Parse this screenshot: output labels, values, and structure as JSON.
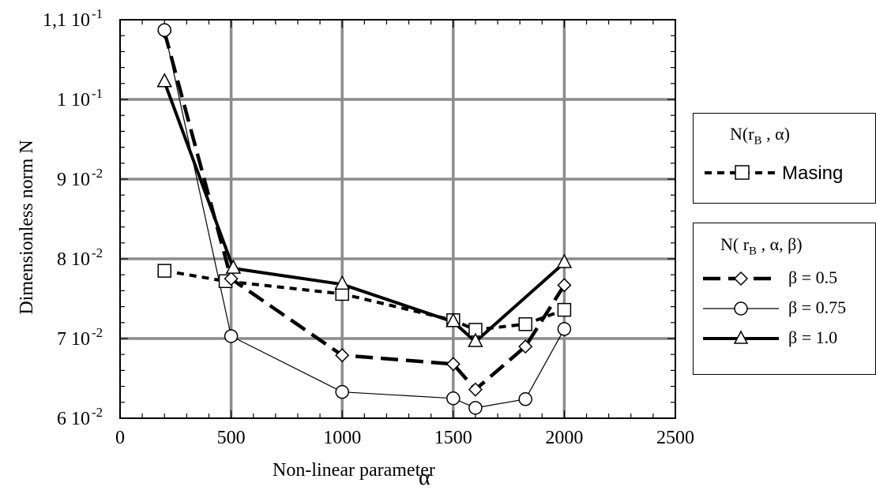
{
  "chart_data": {
    "type": "line",
    "xlabel": "Non-linear parameter",
    "xlabel_symbol": "α",
    "ylabel": "Dimensionless norm N",
    "xlim": [
      0,
      2500
    ],
    "ylim": [
      0.06,
      0.11
    ],
    "x_ticks": [
      0,
      500,
      1000,
      1500,
      2000,
      2500
    ],
    "x_tick_labels": [
      "0",
      "500",
      "1000",
      "1500",
      "2000",
      "2500"
    ],
    "y_ticks": [
      0.06,
      0.07,
      0.08,
      0.09,
      0.1,
      0.11
    ],
    "y_tick_labels": [
      {
        "mant": "6 10",
        "exp": "-2"
      },
      {
        "mant": "7 10",
        "exp": "-2"
      },
      {
        "mant": "8 10",
        "exp": "-2"
      },
      {
        "mant": "9 10",
        "exp": "-2"
      },
      {
        "mant": "1 10",
        "exp": "-1"
      },
      {
        "mant": "1,1 10",
        "exp": "-1"
      }
    ],
    "grid": true,
    "legends": [
      {
        "title": "N(r_B , α)",
        "title_parts": {
          "pre": "N(r",
          "sub": "B",
          "post": " , α)"
        },
        "entries": [
          "Masing"
        ]
      },
      {
        "title": "N( r_B , α, β)",
        "title_parts": {
          "pre": "N( r",
          "sub": "B",
          "post": " , α, β)"
        },
        "entries": [
          "β = 0.5",
          "β = 0.75",
          "β = 1.0"
        ]
      }
    ],
    "series": [
      {
        "name": "Masing",
        "marker": "square",
        "line": "short-dash",
        "color": "#000000",
        "x": [
          200,
          475,
          1000,
          1500,
          1600,
          1825,
          2000
        ],
        "y": [
          0.0785,
          0.0772,
          0.0756,
          0.0723,
          0.0711,
          0.0718,
          0.0736
        ]
      },
      {
        "name": "β = 0.5",
        "marker": "diamond",
        "line": "long-dash",
        "color": "#000000",
        "x": [
          200,
          500,
          1000,
          1500,
          1600,
          1825,
          2000
        ],
        "y": [
          0.1085,
          0.0775,
          0.0679,
          0.0668,
          0.0636,
          0.069,
          0.0767
        ]
      },
      {
        "name": "β = 0.75",
        "marker": "circle",
        "line": "thin",
        "color": "#000000",
        "x": [
          200,
          500,
          1000,
          1500,
          1600,
          1825,
          2000
        ],
        "y": [
          0.1087,
          0.0703,
          0.0633,
          0.0625,
          0.0613,
          0.0624,
          0.0712
        ]
      },
      {
        "name": "β = 1.0",
        "marker": "triangle",
        "line": "thick",
        "color": "#000000",
        "x": [
          200,
          510,
          1000,
          1500,
          1600,
          2000
        ],
        "y": [
          0.1022,
          0.0788,
          0.0768,
          0.0721,
          0.0696,
          0.0795
        ]
      }
    ]
  }
}
